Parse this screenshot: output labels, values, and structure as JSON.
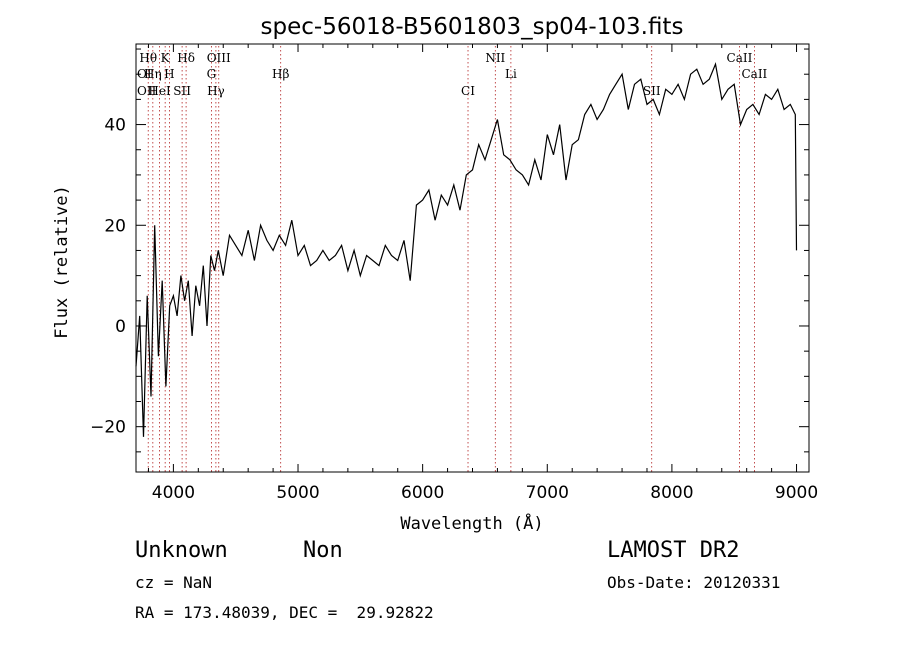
{
  "chart_data": {
    "type": "line",
    "title": "spec-56018-B5601803_sp04-103.fits",
    "xlabel": "Wavelength (Å)",
    "ylabel": "Flux (relative)",
    "xlim": [
      3700,
      9100
    ],
    "ylim": [
      -29,
      56
    ],
    "xticks": [
      4000,
      5000,
      6000,
      7000,
      8000,
      9000
    ],
    "yticks": [
      -20,
      0,
      20,
      40
    ],
    "grid": false,
    "line_color": "#000000",
    "marker_color": "#b22222",
    "series": [
      {
        "x": [
          3700,
          3730,
          3760,
          3790,
          3820,
          3850,
          3880,
          3910,
          3940,
          3970,
          4000,
          4030,
          4060,
          4090,
          4120,
          4150,
          4180,
          4210,
          4240,
          4270,
          4300,
          4330,
          4360,
          4400,
          4450,
          4500,
          4550,
          4600,
          4650,
          4700,
          4750,
          4800,
          4850,
          4900,
          4950,
          5000,
          5050,
          5100,
          5150,
          5200,
          5250,
          5300,
          5350,
          5400,
          5450,
          5500,
          5550,
          5600,
          5650,
          5700,
          5750,
          5800,
          5850,
          5900,
          5950,
          6000,
          6050,
          6100,
          6150,
          6200,
          6250,
          6300,
          6350,
          6400,
          6450,
          6500,
          6550,
          6600,
          6650,
          6700,
          6750,
          6800,
          6850,
          6900,
          6950,
          7000,
          7050,
          7100,
          7150,
          7200,
          7250,
          7300,
          7350,
          7400,
          7450,
          7500,
          7550,
          7600,
          7650,
          7700,
          7750,
          7800,
          7850,
          7900,
          7950,
          8000,
          8050,
          8100,
          8150,
          8200,
          8250,
          8300,
          8350,
          8400,
          8450,
          8500,
          8550,
          8600,
          8650,
          8700,
          8750,
          8800,
          8850,
          8900,
          8950,
          8990,
          9000
        ],
        "y": [
          -8,
          2,
          -22,
          6,
          -14,
          20,
          -6,
          9,
          -12,
          4,
          6,
          2,
          10,
          5,
          9,
          -2,
          8,
          4,
          12,
          0,
          14,
          11,
          15,
          10,
          18,
          16,
          14,
          19,
          13,
          20,
          17,
          15,
          18,
          16,
          21,
          14,
          16,
          12,
          13,
          15,
          13,
          14,
          16,
          11,
          15,
          10,
          14,
          13,
          12,
          16,
          14,
          13,
          17,
          9,
          24,
          25,
          27,
          21,
          26,
          24,
          28,
          23,
          30,
          31,
          36,
          33,
          37,
          41,
          34,
          33,
          31,
          30,
          28,
          33,
          29,
          38,
          34,
          40,
          29,
          36,
          37,
          42,
          44,
          41,
          43,
          46,
          48,
          50,
          43,
          48,
          49,
          44,
          45,
          42,
          47,
          46,
          48,
          45,
          50,
          51,
          48,
          49,
          52,
          45,
          47,
          48,
          40,
          43,
          44,
          42,
          46,
          45,
          47,
          43,
          44,
          42,
          15
        ]
      }
    ],
    "spectral_lines": [
      {
        "label": "Hθ",
        "x": 3798
      },
      {
        "label": "Hη",
        "x": 3835
      },
      {
        "label": "HeI",
        "x": 3889
      },
      {
        "label": "K",
        "x": 3934
      },
      {
        "label": "H",
        "x": 3968
      },
      {
        "label": "SII",
        "x": 4070
      },
      {
        "label": "Hδ",
        "x": 4102
      },
      {
        "label": "G",
        "x": 4305
      },
      {
        "label": "Hγ",
        "x": 4341
      },
      {
        "label": "OIII",
        "x": 4364
      },
      {
        "label": "Hβ",
        "x": 4861
      },
      {
        "label": "CI",
        "x": 6364
      },
      {
        "label": "NII",
        "x": 6583
      },
      {
        "label": "Li",
        "x": 6708
      },
      {
        "label": "SII",
        "x": 7838
      },
      {
        "label": "CaII",
        "x": 8542
      },
      {
        "label": "CaII",
        "x": 8662
      }
    ],
    "edge_labels": [
      "OI",
      "OII"
    ]
  },
  "info": {
    "classification": "Unknown",
    "subclass": "Non",
    "survey": "LAMOST DR2",
    "redshift": "cz = NaN",
    "obs_date": "Obs-Date: 20120331",
    "coords": "RA = 173.48039, DEC =  29.92822"
  }
}
